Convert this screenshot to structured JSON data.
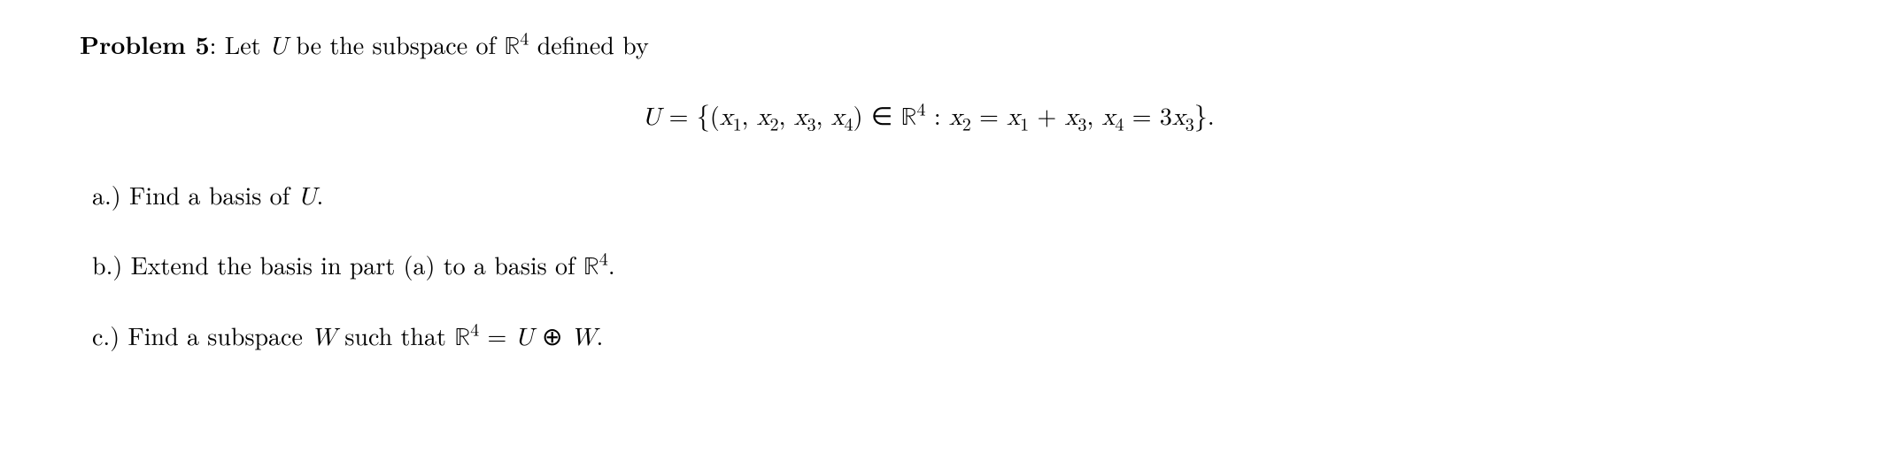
{
  "problem": {
    "label": "Problem 5",
    "separator": ": ",
    "intro_pre": "Let ",
    "U": "U",
    "intro_mid": " be the subspace of ",
    "R": "ℝ",
    "exp4": "4",
    "intro_post": " defined by"
  },
  "equation": {
    "U": "U",
    "eq": " = ",
    "lbrace": "{",
    "lparen": "(",
    "x": "x",
    "s1": "1",
    "comma": ", ",
    "s2": "2",
    "s3": "3",
    "s4": "4",
    "rparen": ")",
    "in": " ∈ ",
    "R": "ℝ",
    "exp4": "4",
    "colon": " : ",
    "plus": " + ",
    "comma2": ",  ",
    "three": "3",
    "rbrace": "}",
    "dot": "."
  },
  "parts": {
    "a": {
      "label": "a.)",
      "space": "  ",
      "pre": "Find a basis of ",
      "U": "U",
      "post": "."
    },
    "b": {
      "label": "b.)",
      "space": "  ",
      "pre": "Extend the basis in part (a) to a basis of ",
      "R": "ℝ",
      "exp4": "4",
      "post": "."
    },
    "c": {
      "label": "c.)",
      "space": "  ",
      "pre": "Find a subspace ",
      "W": "W",
      "mid": " such that ",
      "R": "ℝ",
      "exp4": "4",
      "eq": " = ",
      "U": "U",
      "oplus": " ⊕ ",
      "W2": "W",
      "post": "."
    }
  }
}
